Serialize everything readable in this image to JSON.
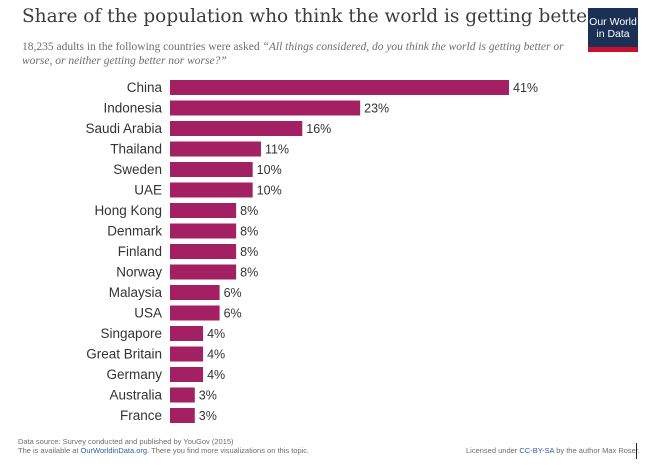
{
  "header": {
    "title": "Share of the population who think the world is getting better",
    "subtitle_lead": "18,235 adults in the following countries were asked ",
    "subtitle_question": "“All things considered, do you think the world is getting better or worse, or neither getting better nor worse?”"
  },
  "logo": {
    "line1": "Our World",
    "line2": "in Data"
  },
  "colors": {
    "bar": "#a32163",
    "label": "#333333",
    "value": "#333333"
  },
  "chart_data": {
    "type": "bar",
    "orientation": "horizontal",
    "categories": [
      "China",
      "Indonesia",
      "Saudi Arabia",
      "Thailand",
      "Sweden",
      "UAE",
      "Hong Kong",
      "Denmark",
      "Finland",
      "Norway",
      "Malaysia",
      "USA",
      "Singapore",
      "Great Britain",
      "Germany",
      "Australia",
      "France"
    ],
    "values": [
      41,
      23,
      16,
      11,
      10,
      10,
      8,
      8,
      8,
      8,
      6,
      6,
      4,
      4,
      4,
      3,
      3
    ],
    "value_labels": [
      "41%",
      "23%",
      "16%",
      "11%",
      "10%",
      "10%",
      "8%",
      "8%",
      "8%",
      "8%",
      "6%",
      "6%",
      "4%",
      "4%",
      "4%",
      "3%",
      "3%"
    ],
    "xlim": [
      0,
      41
    ],
    "unit": "%",
    "grid": false,
    "legend": "none"
  },
  "footer": {
    "source_line": "Data source: Survey conducted and published by YouGov (2015)",
    "avail_prefix": "The is available at ",
    "avail_link": "OurWorldinData.org",
    "avail_suffix": ". There you find more visualizations on this topic.",
    "license_prefix": "Licensed under ",
    "license_link": "CC-BY-SA",
    "license_suffix": " by the author Max Roser."
  }
}
